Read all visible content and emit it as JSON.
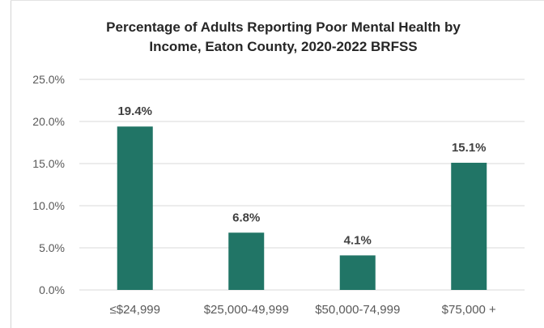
{
  "chart_data": {
    "type": "bar",
    "title": [
      "Percentage of Adults Reporting Poor Mental Health by",
      "Income, Eaton County, 2020-2022 BRFSS"
    ],
    "categories": [
      "≤$24,999",
      "$25,000-49,999",
      "$50,000-74,999",
      "$75,000 +"
    ],
    "values": [
      19.4,
      6.8,
      4.1,
      15.1
    ],
    "value_labels": [
      "19.4%",
      "6.8%",
      "4.1%",
      "15.1%"
    ],
    "y_ticks": [
      "0.0%",
      "5.0%",
      "10.0%",
      "15.0%",
      "20.0%",
      "25.0%"
    ],
    "ylim": [
      0,
      25
    ],
    "grid": true,
    "legend": false,
    "colors": {
      "bar": "#217566",
      "grid": "#d9d9d9",
      "text": "#595959",
      "label": "#404040"
    }
  }
}
